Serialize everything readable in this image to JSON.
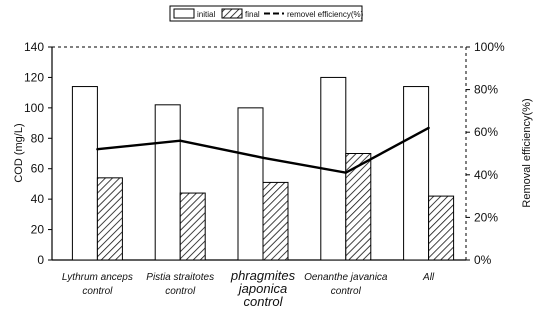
{
  "chart_data": {
    "type": "bar",
    "categories": [
      "Lythrum anceps control",
      "Pistia straitotes control",
      "phragmites japonica control",
      "Oenanthe javanica control",
      "All"
    ],
    "category_label_lines": [
      [
        "Lythrum anceps",
        "control"
      ],
      [
        "Pistia straitotes",
        "control"
      ],
      [
        "phragmites",
        "japonica",
        "control"
      ],
      [
        "Oenanthe javanica",
        "control"
      ],
      [
        "All"
      ]
    ],
    "series": [
      {
        "name": "initial",
        "type": "bar",
        "axis": "left",
        "values": [
          114,
          102,
          100,
          120,
          114
        ]
      },
      {
        "name": "final",
        "type": "bar",
        "axis": "left",
        "pattern": "hatched",
        "values": [
          54,
          44,
          51,
          70,
          42
        ]
      },
      {
        "name": "removel efficiency(%)",
        "type": "line",
        "axis": "right",
        "values": [
          52,
          56,
          48,
          41,
          62
        ]
      }
    ],
    "ylabel": "COD (mg/L)",
    "ylim": [
      0,
      140
    ],
    "yticks": [
      0,
      20,
      40,
      60,
      80,
      100,
      120,
      140
    ],
    "y2label": "Removal efficiency(%)",
    "y2lim": [
      0,
      100
    ],
    "y2ticks": [
      "0%",
      "20%",
      "40%",
      "60%",
      "80%",
      "100%"
    ],
    "legend_position": "top-center",
    "grid": false,
    "colors": {
      "initial": "#ffffff",
      "final": "#ffffff",
      "hatch": "#111111",
      "line": "#000000",
      "axis": "#000000"
    }
  }
}
